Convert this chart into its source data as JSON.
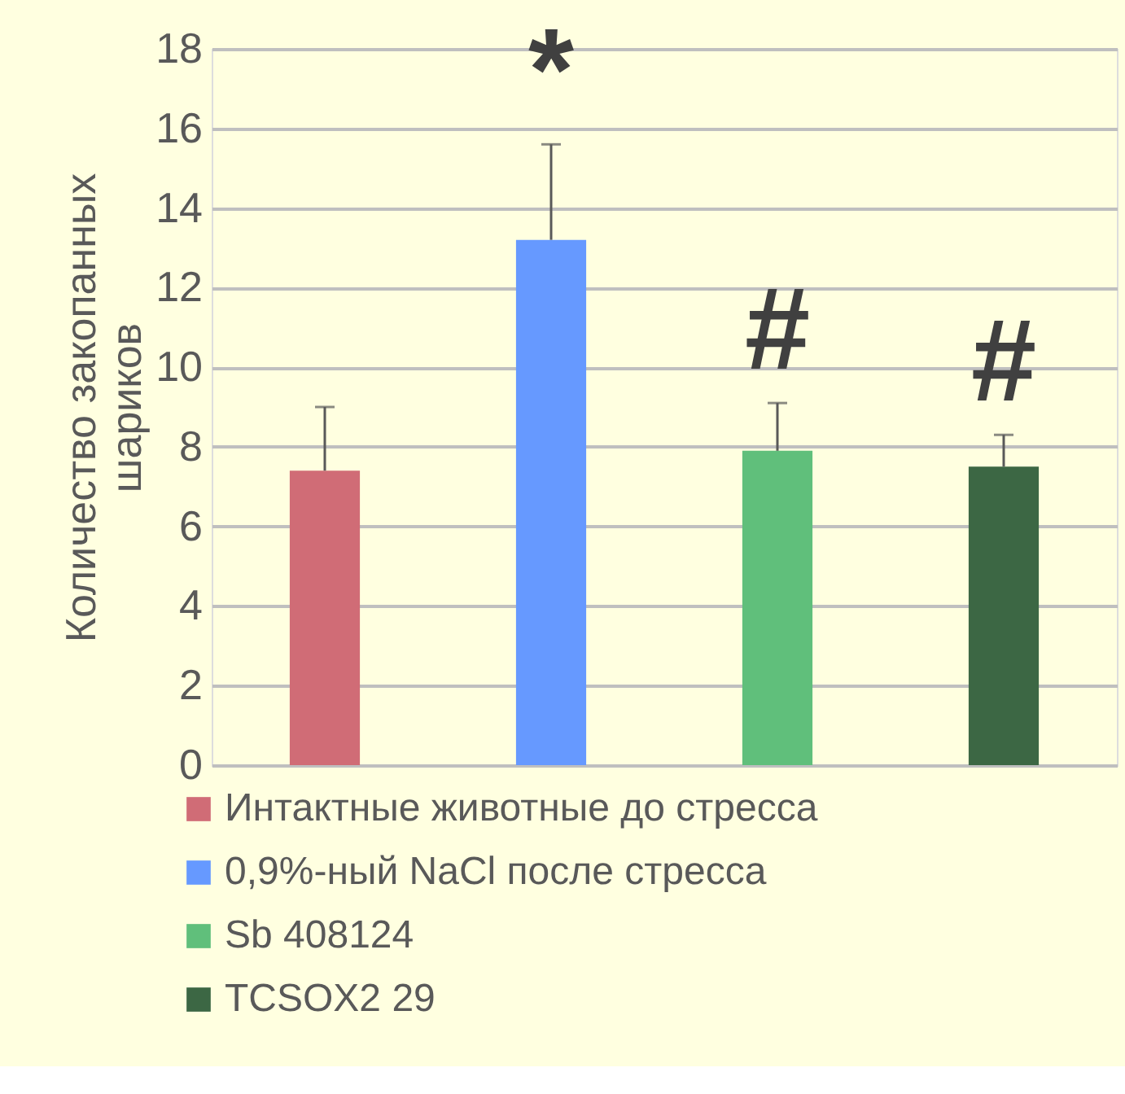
{
  "chart_data": {
    "type": "bar",
    "ylabel": "Количество закопанных шариков",
    "categories": [
      null,
      null,
      null,
      null
    ],
    "series": [
      {
        "name": "Интактные животные до стресса",
        "color": "#d06c76",
        "values": [
          7.4,
          null,
          null,
          null
        ],
        "errors": [
          [
            7.4,
            9.0
          ],
          null,
          null,
          null
        ]
      },
      {
        "name": "0,9%-ный NaCl после стресса",
        "color": "#6699ff",
        "values": [
          null,
          13.2,
          null,
          null
        ],
        "errors": [
          null,
          [
            13.2,
            15.6
          ],
          null,
          null
        ]
      },
      {
        "name": "Sb 408124",
        "color": "#60bf7b",
        "values": [
          null,
          null,
          7.9,
          null
        ],
        "errors": [
          null,
          null,
          [
            7.9,
            9.1
          ],
          null
        ]
      },
      {
        "name": "TCSOX2 29",
        "color": "#3c6744",
        "values": [
          null,
          null,
          null,
          7.5
        ],
        "errors": [
          null,
          null,
          null,
          [
            7.5,
            8.3
          ]
        ]
      }
    ],
    "ylim": [
      0,
      18
    ],
    "yticks": [
      0,
      2,
      4,
      6,
      8,
      10,
      12,
      14,
      16,
      18
    ],
    "grid": "y",
    "legend": "bottom",
    "annotations": [
      "*",
      "#",
      "#"
    ]
  }
}
